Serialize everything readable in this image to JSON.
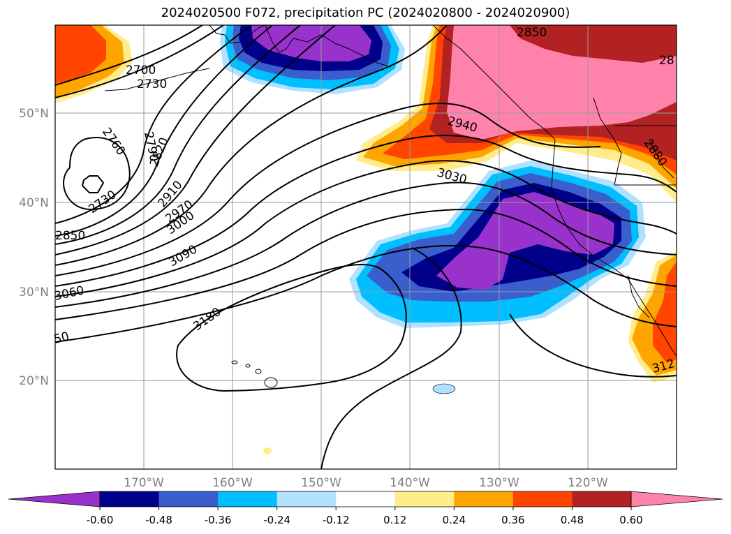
{
  "title": "2024020500 F072, precipitation PC (2024020800 - 2024020900)",
  "map": {
    "lon_labels": [
      "170°W",
      "160°W",
      "150°W",
      "140°W",
      "130°W",
      "120°W"
    ],
    "lat_labels": [
      "50°N",
      "40°N",
      "30°N",
      "20°N"
    ],
    "contour_labels": [
      "2700",
      "2730",
      "2760",
      "2790",
      "2820",
      "2730",
      "2850",
      "2910",
      "2970",
      "3000",
      "3090",
      "3060",
      "50",
      "3180",
      "2850",
      "28",
      "2940",
      "3030",
      "2880",
      "312"
    ]
  },
  "colorbar": {
    "labels": [
      "-0.60",
      "-0.48",
      "-0.36",
      "-0.24",
      "-0.12",
      "0.12",
      "0.24",
      "0.36",
      "0.48",
      "0.60"
    ],
    "colors": [
      "#9932cc",
      "#00008b",
      "#3a5fcd",
      "#00bfff",
      "#b0e2ff",
      "#ffffff",
      "#ffec8b",
      "#ffa500",
      "#ff4500",
      "#b22222",
      "#ff82ab"
    ]
  }
}
